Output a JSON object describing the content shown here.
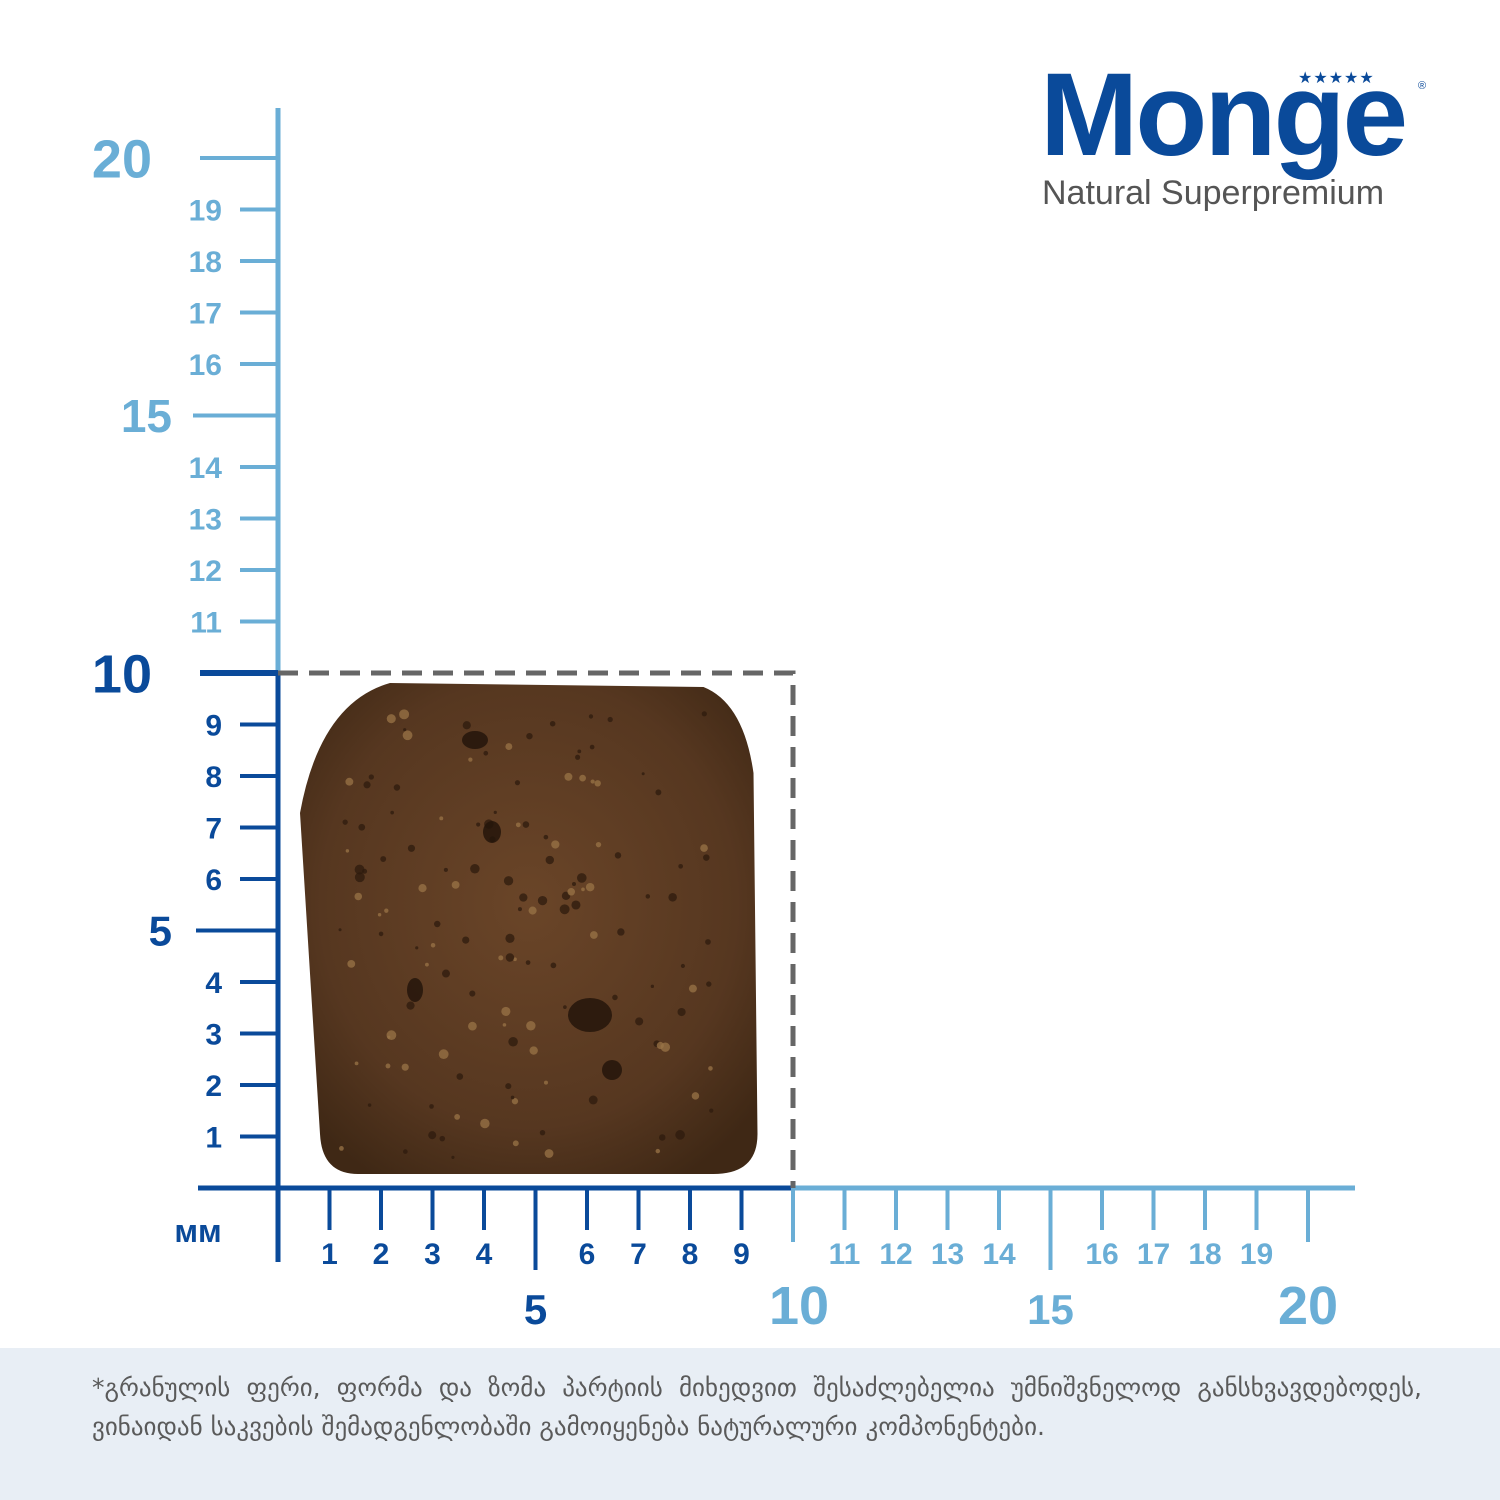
{
  "brand": {
    "name": "Monge",
    "tagline": "Natural Superpremium"
  },
  "colors": {
    "dark_blue": "#0a4a9a",
    "light_blue": "#6aaed6",
    "kibble": "#5a3a22",
    "dash_box": "#666666"
  },
  "ruler": {
    "unit": "мм",
    "y_major_labels": [
      "20",
      "15",
      "10",
      "5"
    ],
    "y_minor_labels": [
      "19",
      "18",
      "17",
      "16",
      "14",
      "13",
      "12",
      "11",
      "9",
      "8",
      "7",
      "6",
      "4",
      "3",
      "2",
      "1"
    ],
    "x_major_labels": [
      "5",
      "10",
      "15",
      "20"
    ],
    "x_minor_labels": [
      "1",
      "2",
      "3",
      "4",
      "6",
      "7",
      "8",
      "9",
      "11",
      "12",
      "13",
      "14",
      "16",
      "17",
      "18",
      "19"
    ]
  },
  "kibble": {
    "width_mm": 9,
    "height_mm": 10,
    "reference_box_mm": 10
  },
  "footnote": "*გრანულის ფერი, ფორმა და ზომა პარტიის მიხედვით შესაძლებელია უმნიშვნელოდ განსხვავდებოდეს, ვინაიდან საკვების შემადგენლობაში გამოიყენება ნატურალური კომპონენტები."
}
